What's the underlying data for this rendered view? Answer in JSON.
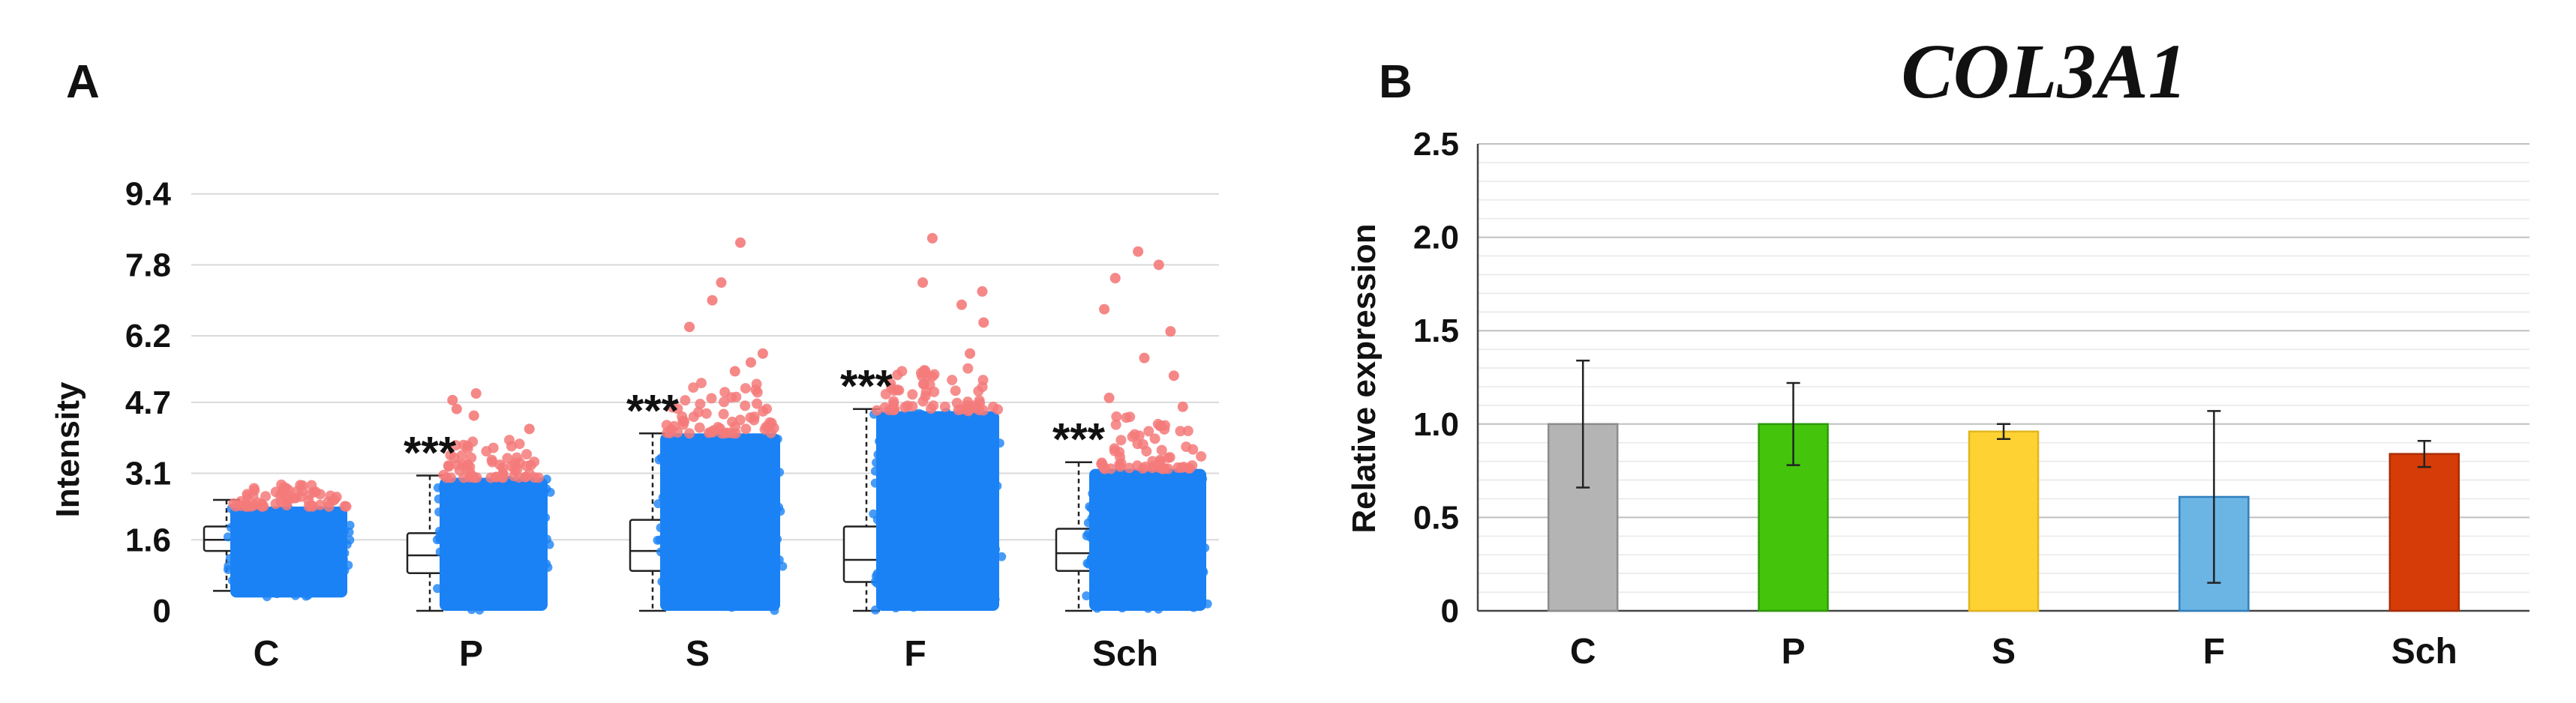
{
  "panelA": {
    "label": "A",
    "chart_data": {
      "type": "box-jitter",
      "title": "",
      "xlabel": "",
      "ylabel": "Intensity",
      "ylim": [
        0,
        11
      ],
      "yticks": [
        "0",
        "1.6",
        "3.1",
        "4.7",
        "6.2",
        "7.8",
        "9.4"
      ],
      "ytick_values": [
        0,
        1.6,
        3.1,
        4.7,
        6.2,
        7.8,
        9.4
      ],
      "categories": [
        "C",
        "P",
        "S",
        "F",
        "Sch"
      ],
      "significance": [
        "",
        "***",
        "***",
        "***",
        "***"
      ],
      "boxes": [
        {
          "min": 0.45,
          "q1": 1.35,
          "median": 1.6,
          "q3": 1.9,
          "max": 2.5
        },
        {
          "min": 0.0,
          "q1": 0.85,
          "median": 1.25,
          "q3": 1.75,
          "max": 3.05
        },
        {
          "min": 0.0,
          "q1": 0.9,
          "median": 1.35,
          "q3": 2.05,
          "max": 4.0
        },
        {
          "min": 0.0,
          "q1": 0.65,
          "median": 1.15,
          "q3": 1.9,
          "max": 4.55
        },
        {
          "min": 0.0,
          "q1": 0.9,
          "median": 1.3,
          "q3": 1.85,
          "max": 3.35
        }
      ],
      "jitter": [
        {
          "dense_low": 0.3,
          "dense_high": 2.35,
          "outlier_start": 2.35,
          "outlier_top": 2.85,
          "extra_outliers": []
        },
        {
          "dense_low": 0.0,
          "dense_high": 3.0,
          "outlier_start": 3.0,
          "outlier_top": 3.9,
          "extra_outliers": [
            4.1,
            4.4,
            4.55,
            4.75,
            4.9
          ]
        },
        {
          "dense_low": 0.0,
          "dense_high": 4.0,
          "outlier_start": 4.0,
          "outlier_top": 5.2,
          "extra_outliers": [
            5.4,
            5.6,
            5.8,
            6.4,
            7.0,
            7.4,
            8.3
          ]
        },
        {
          "dense_low": 0.0,
          "dense_high": 4.5,
          "outlier_start": 4.5,
          "outlier_top": 5.5,
          "extra_outliers": [
            5.8,
            6.5,
            6.9,
            7.2,
            7.4,
            8.4
          ]
        },
        {
          "dense_low": 0.0,
          "dense_high": 3.2,
          "outlier_start": 3.2,
          "outlier_top": 4.4,
          "extra_outliers": [
            4.6,
            4.8,
            5.3,
            5.7,
            6.3,
            6.8,
            7.5,
            7.8,
            8.1
          ]
        }
      ],
      "colors": {
        "points": "#1a82f5",
        "outliers": "#f47a7a",
        "box": "#222222",
        "grid": "#d9d9d9"
      }
    }
  },
  "panelB": {
    "label": "B",
    "gene": "COL3A1",
    "chart_data": {
      "type": "bar",
      "title": "COL3A1",
      "xlabel": "",
      "ylabel": "Relative expression",
      "ylim": [
        0,
        2.5
      ],
      "yticks": [
        "0",
        "0.5",
        "1.0",
        "1.5",
        "2.0",
        "2.5"
      ],
      "ytick_values": [
        0,
        0.5,
        1.0,
        1.5,
        2.0,
        2.5
      ],
      "categories": [
        "C",
        "P",
        "S",
        "F",
        "Sch"
      ],
      "values": [
        1.0,
        1.0,
        0.96,
        0.61,
        0.84
      ],
      "errors": [
        0.34,
        0.22,
        0.04,
        0.46,
        0.07
      ],
      "colors": [
        "#b4b4b4",
        "#44c50c",
        "#ffd234",
        "#6ab5e4",
        "#d63c08"
      ],
      "edge_colors": [
        "#8c8c8c",
        "#2f9a08",
        "#e3b51d",
        "#2f7fbd",
        "#a82d06"
      ]
    }
  }
}
